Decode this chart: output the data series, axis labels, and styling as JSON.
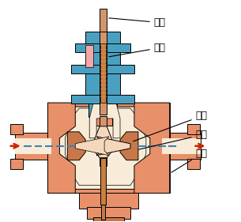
{
  "bg_color": "#ffffff",
  "vc": "#E8906A",
  "vd": "#C87848",
  "vl": "#F5D8BC",
  "bc": "#4AA0C0",
  "pk": "#F0A8A8",
  "sc": "#D4956A",
  "sd": "#C88040",
  "ic": "#F8ECD8",
  "dc": "#4080B0",
  "ac": "#CC2200",
  "lc": "#000000",
  "label_stem": "阀杆",
  "label_pack": "填料",
  "label_plug": "阀芯",
  "label_seat": "阀座",
  "label_body": "阀体",
  "figsize": [
    3.05,
    2.81
  ],
  "dpi": 100
}
